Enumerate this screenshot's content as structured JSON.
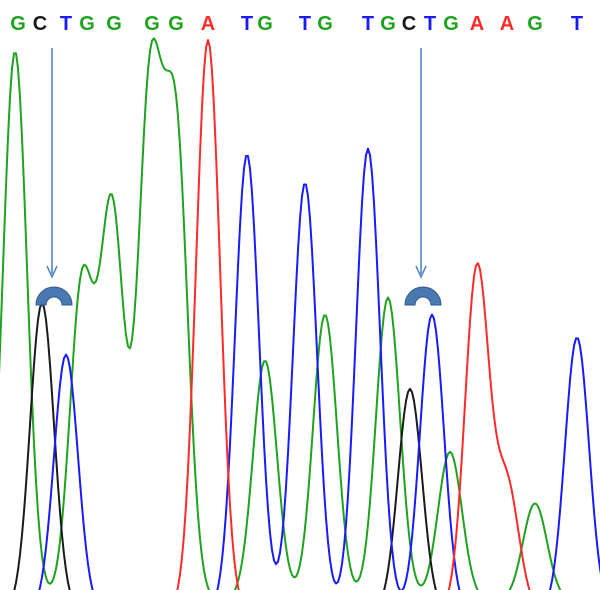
{
  "chart_data": {
    "type": "line",
    "colors": {
      "G": "#1fa31f",
      "C": "#1a1a1a",
      "T": "#1a1aff",
      "A": "#ff2b2b"
    },
    "sequence": [
      {
        "base": "G"
      },
      {
        "base": "C"
      },
      {
        "base": "T"
      },
      {
        "base": "G"
      },
      {
        "base": "G"
      },
      {
        "base": "G"
      },
      {
        "base": "G"
      },
      {
        "base": "A"
      },
      {
        "base": "T"
      },
      {
        "base": "G"
      },
      {
        "base": "T"
      },
      {
        "base": "G"
      },
      {
        "base": "T"
      },
      {
        "base": "G"
      },
      {
        "base": "C"
      },
      {
        "base": "T"
      },
      {
        "base": "G"
      },
      {
        "base": "A"
      },
      {
        "base": "A"
      },
      {
        "base": "G"
      },
      {
        "base": "T"
      }
    ],
    "markers": [
      {
        "base_index": 1,
        "icon": "arrow-down-icon"
      },
      {
        "base_index": 14,
        "icon": "arrow-down-icon"
      }
    ],
    "series": [
      {
        "channel": "G",
        "peaks": [
          {
            "x": 15,
            "y": 0.96
          },
          {
            "x": 82,
            "y": 0.55
          },
          {
            "x": 112,
            "y": 0.68
          },
          {
            "x": 150,
            "y": 0.88
          },
          {
            "x": 176,
            "y": 0.8
          },
          {
            "x": 265,
            "y": 0.42
          },
          {
            "x": 325,
            "y": 0.5
          },
          {
            "x": 388,
            "y": 0.53
          },
          {
            "x": 450,
            "y": 0.26
          },
          {
            "x": 535,
            "y": 0.17
          }
        ]
      },
      {
        "channel": "C",
        "peaks": [
          {
            "x": 42,
            "y": 0.54
          },
          {
            "x": 410,
            "y": 0.39
          }
        ]
      },
      {
        "channel": "T",
        "peaks": [
          {
            "x": 66,
            "y": 0.45
          },
          {
            "x": 247,
            "y": 0.8
          },
          {
            "x": 305,
            "y": 0.75
          },
          {
            "x": 368,
            "y": 0.81
          },
          {
            "x": 432,
            "y": 0.52
          },
          {
            "x": 577,
            "y": 0.48
          }
        ]
      },
      {
        "channel": "A",
        "peaks": [
          {
            "x": 208,
            "y": 1.0
          },
          {
            "x": 477,
            "y": 0.6
          },
          {
            "x": 507,
            "y": 0.22
          }
        ]
      }
    ]
  }
}
